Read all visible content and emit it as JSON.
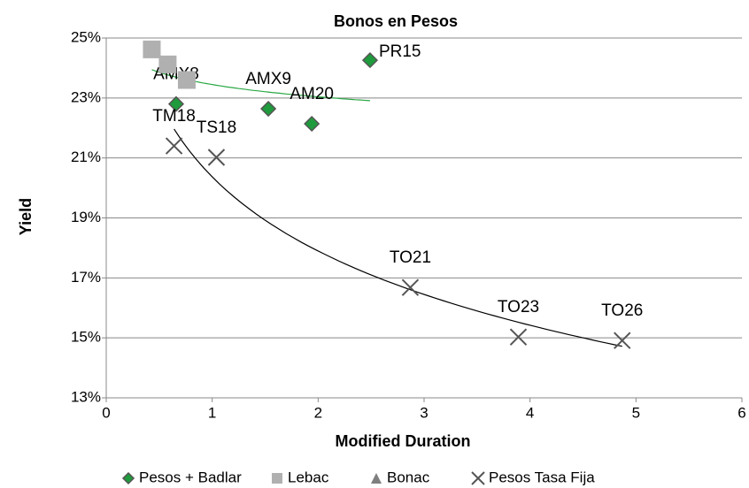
{
  "chart_data": {
    "type": "scatter",
    "title": "Bonos en Pesos",
    "x_label": "Modified Duration",
    "y_label": "Yield",
    "xlim": [
      0,
      6
    ],
    "xticks": [
      0,
      1,
      2,
      3,
      4,
      5,
      6
    ],
    "ylim": [
      13,
      25
    ],
    "yticks": [
      {
        "value": 13,
        "label": "13%"
      },
      {
        "value": 15,
        "label": "15%"
      },
      {
        "value": 17,
        "label": "17%"
      },
      {
        "value": 19,
        "label": "19%"
      },
      {
        "value": 21,
        "label": "21%"
      },
      {
        "value": 23,
        "label": "23%"
      },
      {
        "value": 25,
        "label": "25%"
      }
    ],
    "grid": true,
    "legend": "bottom",
    "series": [
      {
        "name": "Pesos + Badlar",
        "marker": "diamond",
        "color": "#1f9a3c",
        "x": [
          0.66,
          1.53,
          1.94,
          2.49
        ],
        "values": [
          22.8,
          22.64,
          22.14,
          24.26
        ],
        "labels": [
          "AMX8",
          "AMX9",
          "AM20",
          "PR15"
        ]
      },
      {
        "name": "Lebac",
        "marker": "square",
        "color": "#b0b0b0",
        "x": [
          0.43,
          0.58,
          0.76
        ],
        "values": [
          24.62,
          24.12,
          23.6
        ]
      },
      {
        "name": "Bonac",
        "marker": "triangle",
        "color": "#7f7f7f",
        "x": [],
        "values": []
      },
      {
        "name": "Pesos Tasa Fija",
        "marker": "x",
        "color": "#555555",
        "x": [
          0.64,
          1.04,
          2.87,
          3.89,
          4.87
        ],
        "values": [
          21.4,
          21.02,
          16.68,
          15.03,
          14.91
        ],
        "labels": [
          "TM18",
          "TS18",
          "TO21",
          "TO23",
          "TO26"
        ]
      }
    ],
    "trendlines": [
      {
        "series": [
          "Pesos + Badlar",
          "Lebac"
        ],
        "color": "#2aa845"
      },
      {
        "series": [
          "Pesos Tasa Fija"
        ],
        "color": "#000000"
      }
    ]
  }
}
